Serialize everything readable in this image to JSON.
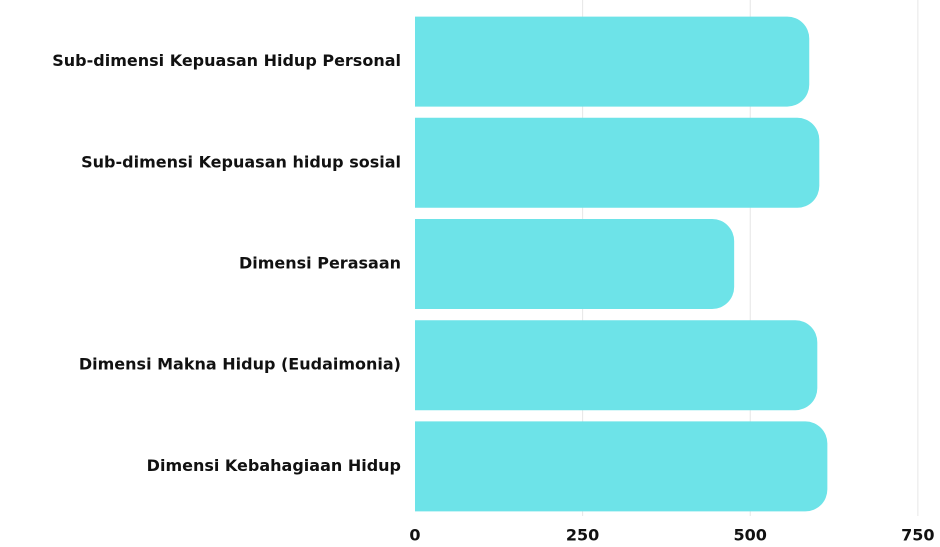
{
  "chart_data": {
    "type": "hbar",
    "categories": [
      "Sub-dimensi Kepuasan Hidup Personal",
      "Sub-dimensi Kepuasan hidup sosial",
      "Dimensi Perasaan",
      "Dimensi Makna Hidup (Eudaimonia)",
      "Dimensi Kebahagiaan Hidup"
    ],
    "values": [
      588,
      603,
      476,
      600,
      615
    ],
    "color": "#6de3e8",
    "xlim": [
      0,
      783
    ],
    "xticks": [
      0,
      250,
      500,
      750
    ],
    "grid": true
  }
}
